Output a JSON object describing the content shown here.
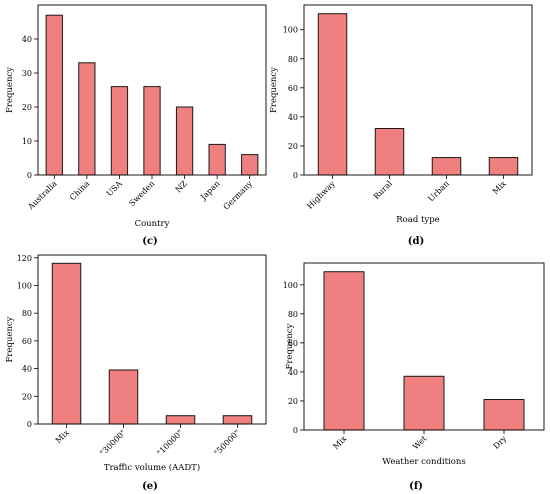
{
  "bar_color": "#f08080",
  "edge_color": "#1a1a1a",
  "chart_data": [
    {
      "id": "c",
      "type": "bar",
      "caption": "(c)",
      "xlabel": "Country",
      "ylabel": "Frequency",
      "categories": [
        "Australia",
        "China",
        "USA",
        "Sweden",
        "NZ",
        "Japan",
        "Germany"
      ],
      "values": [
        47,
        33,
        26,
        26,
        20,
        9,
        6
      ],
      "ylim": [
        0,
        50
      ],
      "yticks": [
        0,
        10,
        20,
        30,
        40
      ],
      "grid": false
    },
    {
      "id": "d",
      "type": "bar",
      "caption": "(d)",
      "xlabel": "Road type",
      "ylabel": "Frequency",
      "categories": [
        "Highway",
        "Rural",
        "Urban",
        "Mix"
      ],
      "values": [
        111,
        32,
        12,
        12
      ],
      "ylim": [
        0,
        117
      ],
      "yticks": [
        0,
        20,
        40,
        60,
        80,
        100
      ],
      "grid": false
    },
    {
      "id": "e",
      "type": "bar",
      "caption": "(e)",
      "xlabel": "Traffic volume (AADT)",
      "ylabel": "Frequency",
      "categories": [
        "Mix",
        "\"30000\"",
        "\"10000\"",
        "\"50000\""
      ],
      "values": [
        116,
        39,
        6,
        6
      ],
      "ylim": [
        0,
        122
      ],
      "yticks": [
        0,
        20,
        40,
        60,
        80,
        100,
        120
      ],
      "grid": false
    },
    {
      "id": "f",
      "type": "bar",
      "caption": "(f)",
      "xlabel": "Weather conditions",
      "ylabel": "Frequency",
      "categories": [
        "Mix",
        "Wet",
        "Dry"
      ],
      "values": [
        109,
        37,
        21
      ],
      "ylim": [
        0,
        115
      ],
      "yticks": [
        0,
        20,
        40,
        60,
        80,
        100
      ],
      "grid": false
    }
  ]
}
